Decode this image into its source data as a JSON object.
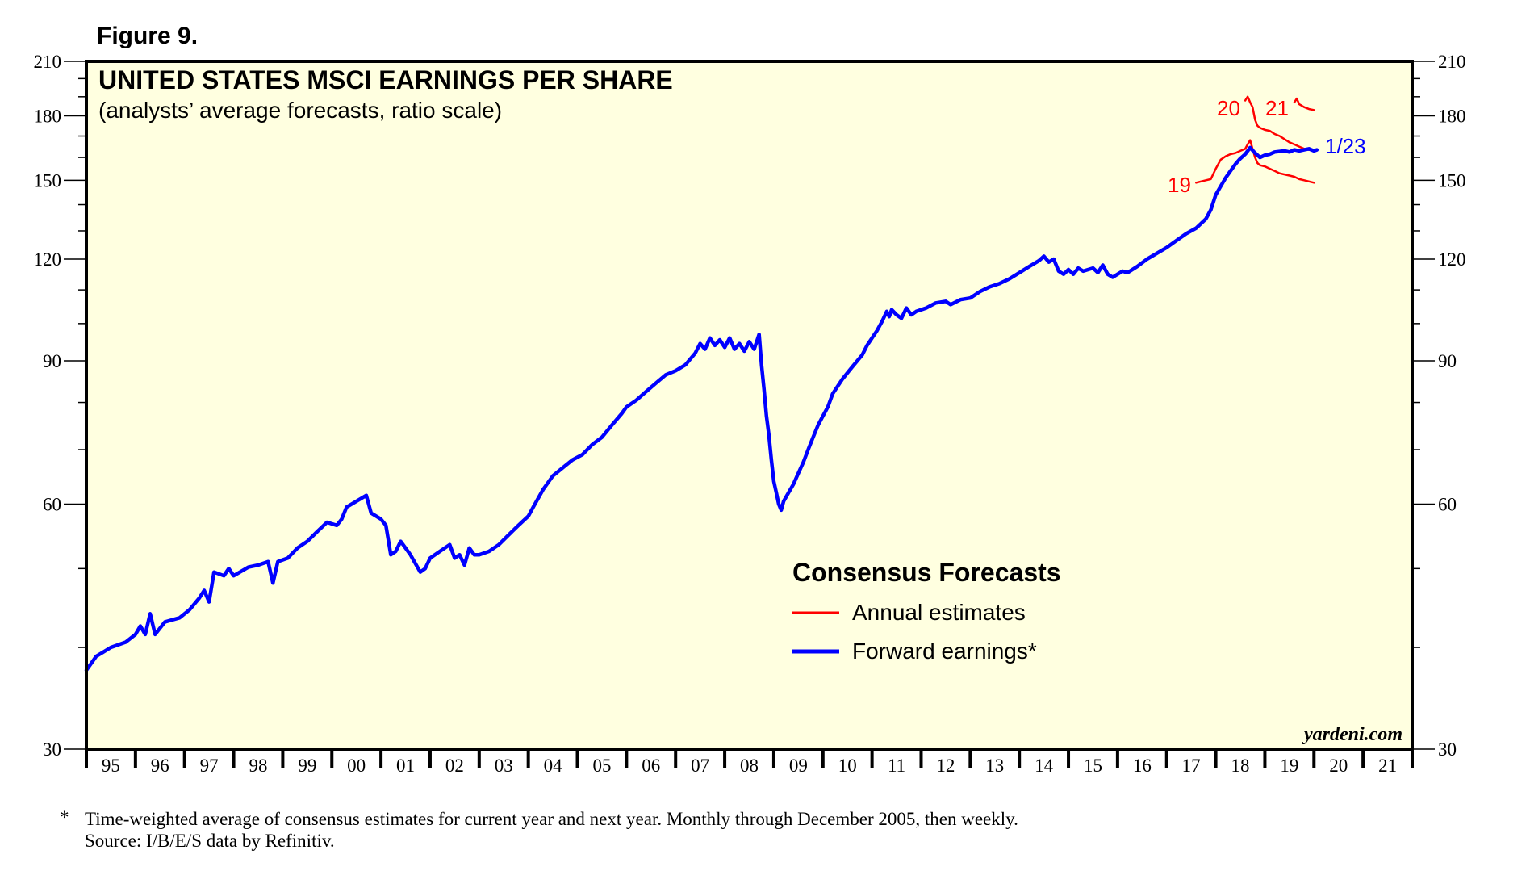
{
  "figure_label": "Figure 9.",
  "chart_data": {
    "type": "line",
    "title": "UNITED STATES MSCI EARNINGS PER SHARE",
    "subtitle": "(analysts’ average forecasts, ratio scale)",
    "yscale": "log",
    "ylim": [
      30,
      210
    ],
    "yticks": [
      30,
      60,
      90,
      120,
      150,
      180,
      210
    ],
    "xlim": [
      1995.0,
      2022.0
    ],
    "xtick_labels": [
      "95",
      "96",
      "97",
      "98",
      "99",
      "00",
      "01",
      "02",
      "03",
      "04",
      "05",
      "06",
      "07",
      "08",
      "09",
      "10",
      "11",
      "12",
      "13",
      "14",
      "15",
      "16",
      "17",
      "18",
      "19",
      "20",
      "21"
    ],
    "legend": {
      "title": "Consensus Forecasts",
      "entries": [
        {
          "label": "Annual estimates",
          "color": "#ff0000"
        },
        {
          "label": "Forward earnings*",
          "color": "#0000ff"
        }
      ]
    },
    "annotations": {
      "year_19": "19",
      "year_20": "20",
      "year_21": "21",
      "last_date": "1/23"
    },
    "watermark": "yardeni.com",
    "series": [
      {
        "name": "Forward earnings",
        "color": "#0000ff",
        "points": [
          [
            1995.0,
            37.5
          ],
          [
            1995.2,
            39.0
          ],
          [
            1995.5,
            40.0
          ],
          [
            1995.8,
            40.6
          ],
          [
            1996.0,
            41.5
          ],
          [
            1996.1,
            42.5
          ],
          [
            1996.2,
            41.5
          ],
          [
            1996.3,
            44.0
          ],
          [
            1996.4,
            41.5
          ],
          [
            1996.6,
            43.0
          ],
          [
            1996.9,
            43.5
          ],
          [
            1997.1,
            44.5
          ],
          [
            1997.3,
            46.0
          ],
          [
            1997.4,
            47.0
          ],
          [
            1997.5,
            45.5
          ],
          [
            1997.6,
            49.5
          ],
          [
            1997.8,
            49.0
          ],
          [
            1997.9,
            50.0
          ],
          [
            1998.0,
            49.0
          ],
          [
            1998.3,
            50.2
          ],
          [
            1998.5,
            50.5
          ],
          [
            1998.7,
            51.0
          ],
          [
            1998.8,
            48.0
          ],
          [
            1998.9,
            51.0
          ],
          [
            1999.1,
            51.5
          ],
          [
            1999.3,
            53.0
          ],
          [
            1999.5,
            54.0
          ],
          [
            1999.7,
            55.5
          ],
          [
            1999.9,
            57.0
          ],
          [
            2000.1,
            56.5
          ],
          [
            2000.2,
            57.5
          ],
          [
            2000.3,
            59.5
          ],
          [
            2000.5,
            60.5
          ],
          [
            2000.7,
            61.5
          ],
          [
            2000.8,
            58.5
          ],
          [
            2001.0,
            57.5
          ],
          [
            2001.1,
            56.5
          ],
          [
            2001.2,
            52.0
          ],
          [
            2001.3,
            52.5
          ],
          [
            2001.4,
            54.0
          ],
          [
            2001.5,
            53.0
          ],
          [
            2001.6,
            52.0
          ],
          [
            2001.8,
            49.5
          ],
          [
            2001.9,
            50.0
          ],
          [
            2002.0,
            51.5
          ],
          [
            2002.2,
            52.5
          ],
          [
            2002.4,
            53.5
          ],
          [
            2002.5,
            51.5
          ],
          [
            2002.6,
            52.0
          ],
          [
            2002.7,
            50.5
          ],
          [
            2002.8,
            53.0
          ],
          [
            2002.9,
            52.0
          ],
          [
            2003.0,
            52.0
          ],
          [
            2003.2,
            52.5
          ],
          [
            2003.4,
            53.5
          ],
          [
            2003.6,
            55.0
          ],
          [
            2003.8,
            56.5
          ],
          [
            2004.0,
            58.0
          ],
          [
            2004.1,
            59.5
          ],
          [
            2004.3,
            62.5
          ],
          [
            2004.5,
            65.0
          ],
          [
            2004.7,
            66.5
          ],
          [
            2004.9,
            68.0
          ],
          [
            2005.1,
            69.0
          ],
          [
            2005.3,
            71.0
          ],
          [
            2005.5,
            72.5
          ],
          [
            2005.7,
            75.0
          ],
          [
            2005.9,
            77.5
          ],
          [
            2006.0,
            79.0
          ],
          [
            2006.2,
            80.5
          ],
          [
            2006.4,
            82.5
          ],
          [
            2006.6,
            84.5
          ],
          [
            2006.8,
            86.5
          ],
          [
            2007.0,
            87.5
          ],
          [
            2007.2,
            89.0
          ],
          [
            2007.4,
            92.0
          ],
          [
            2007.5,
            94.5
          ],
          [
            2007.6,
            93.0
          ],
          [
            2007.7,
            96.0
          ],
          [
            2007.8,
            94.0
          ],
          [
            2007.9,
            95.5
          ],
          [
            2008.0,
            93.5
          ],
          [
            2008.1,
            96.0
          ],
          [
            2008.2,
            93.0
          ],
          [
            2008.3,
            94.5
          ],
          [
            2008.4,
            92.5
          ],
          [
            2008.5,
            95.0
          ],
          [
            2008.6,
            93.0
          ],
          [
            2008.7,
            97.0
          ],
          [
            2008.75,
            89.0
          ],
          [
            2008.8,
            83.0
          ],
          [
            2008.85,
            77.0
          ],
          [
            2008.9,
            73.0
          ],
          [
            2008.95,
            68.0
          ],
          [
            2009.0,
            64.0
          ],
          [
            2009.05,
            62.0
          ],
          [
            2009.1,
            60.0
          ],
          [
            2009.15,
            59.0
          ],
          [
            2009.2,
            60.5
          ],
          [
            2009.3,
            62.0
          ],
          [
            2009.4,
            63.5
          ],
          [
            2009.5,
            65.5
          ],
          [
            2009.6,
            67.5
          ],
          [
            2009.7,
            70.0
          ],
          [
            2009.8,
            72.5
          ],
          [
            2009.9,
            75.0
          ],
          [
            2010.0,
            77.0
          ],
          [
            2010.1,
            79.0
          ],
          [
            2010.2,
            82.0
          ],
          [
            2010.4,
            85.5
          ],
          [
            2010.6,
            88.5
          ],
          [
            2010.8,
            91.5
          ],
          [
            2010.9,
            94.0
          ],
          [
            2011.0,
            96.0
          ],
          [
            2011.1,
            98.0
          ],
          [
            2011.2,
            100.5
          ],
          [
            2011.3,
            103.5
          ],
          [
            2011.35,
            102.0
          ],
          [
            2011.4,
            104.0
          ],
          [
            2011.5,
            102.5
          ],
          [
            2011.6,
            101.5
          ],
          [
            2011.7,
            104.5
          ],
          [
            2011.8,
            102.5
          ],
          [
            2011.9,
            103.5
          ],
          [
            2012.1,
            104.5
          ],
          [
            2012.3,
            106.0
          ],
          [
            2012.5,
            106.5
          ],
          [
            2012.6,
            105.5
          ],
          [
            2012.8,
            107.0
          ],
          [
            2013.0,
            107.5
          ],
          [
            2013.2,
            109.5
          ],
          [
            2013.4,
            111.0
          ],
          [
            2013.6,
            112.0
          ],
          [
            2013.8,
            113.5
          ],
          [
            2014.0,
            115.5
          ],
          [
            2014.2,
            117.5
          ],
          [
            2014.4,
            119.5
          ],
          [
            2014.5,
            121.0
          ],
          [
            2014.6,
            119.0
          ],
          [
            2014.7,
            120.0
          ],
          [
            2014.8,
            116.0
          ],
          [
            2014.9,
            115.0
          ],
          [
            2015.0,
            116.5
          ],
          [
            2015.1,
            115.0
          ],
          [
            2015.2,
            117.0
          ],
          [
            2015.3,
            116.0
          ],
          [
            2015.5,
            117.0
          ],
          [
            2015.6,
            115.5
          ],
          [
            2015.7,
            118.0
          ],
          [
            2015.8,
            115.0
          ],
          [
            2015.9,
            114.0
          ],
          [
            2016.0,
            115.0
          ],
          [
            2016.1,
            116.0
          ],
          [
            2016.2,
            115.5
          ],
          [
            2016.4,
            117.5
          ],
          [
            2016.6,
            120.0
          ],
          [
            2016.8,
            122.0
          ],
          [
            2017.0,
            124.0
          ],
          [
            2017.2,
            126.5
          ],
          [
            2017.4,
            129.0
          ],
          [
            2017.6,
            131.0
          ],
          [
            2017.8,
            134.5
          ],
          [
            2017.9,
            138.0
          ],
          [
            2018.0,
            144.0
          ],
          [
            2018.1,
            147.5
          ],
          [
            2018.2,
            151.0
          ],
          [
            2018.3,
            154.0
          ],
          [
            2018.4,
            157.0
          ],
          [
            2018.5,
            159.5
          ],
          [
            2018.6,
            161.5
          ],
          [
            2018.7,
            164.5
          ],
          [
            2018.8,
            162.0
          ],
          [
            2018.9,
            160.0
          ],
          [
            2019.0,
            161.0
          ],
          [
            2019.1,
            161.5
          ],
          [
            2019.2,
            162.5
          ],
          [
            2019.4,
            163.0
          ],
          [
            2019.5,
            162.5
          ],
          [
            2019.6,
            163.5
          ],
          [
            2019.7,
            163.0
          ],
          [
            2019.8,
            163.5
          ],
          [
            2019.9,
            164.0
          ],
          [
            2020.0,
            163.0
          ],
          [
            2020.06,
            163.5
          ]
        ]
      },
      {
        "name": "Annual estimates 2019",
        "color": "#ff0000",
        "points": [
          [
            2017.6,
            149.0
          ],
          [
            2017.7,
            149.5
          ],
          [
            2017.8,
            150.0
          ],
          [
            2017.9,
            150.5
          ],
          [
            2018.0,
            155.0
          ],
          [
            2018.1,
            159.0
          ],
          [
            2018.2,
            160.5
          ],
          [
            2018.3,
            161.5
          ],
          [
            2018.4,
            162.0
          ],
          [
            2018.5,
            163.0
          ],
          [
            2018.6,
            164.0
          ],
          [
            2018.65,
            166.0
          ],
          [
            2018.7,
            168.0
          ],
          [
            2018.75,
            164.0
          ],
          [
            2018.8,
            160.0
          ],
          [
            2018.85,
            157.5
          ],
          [
            2018.9,
            156.5
          ],
          [
            2019.0,
            156.0
          ],
          [
            2019.1,
            155.0
          ],
          [
            2019.2,
            154.0
          ],
          [
            2019.3,
            153.0
          ],
          [
            2019.4,
            152.5
          ],
          [
            2019.5,
            152.0
          ],
          [
            2019.6,
            151.5
          ],
          [
            2019.7,
            150.5
          ],
          [
            2019.8,
            150.0
          ],
          [
            2019.9,
            149.5
          ],
          [
            2020.0,
            149.0
          ]
        ]
      },
      {
        "name": "Annual estimates 2020",
        "color": "#ff0000",
        "points": [
          [
            2018.6,
            188.0
          ],
          [
            2018.65,
            190.0
          ],
          [
            2018.7,
            187.0
          ],
          [
            2018.75,
            184.5
          ],
          [
            2018.8,
            178.0
          ],
          [
            2018.85,
            175.0
          ],
          [
            2018.9,
            174.0
          ],
          [
            2019.0,
            173.0
          ],
          [
            2019.1,
            172.5
          ],
          [
            2019.2,
            171.0
          ],
          [
            2019.3,
            170.0
          ],
          [
            2019.4,
            168.5
          ],
          [
            2019.5,
            167.0
          ],
          [
            2019.6,
            166.0
          ],
          [
            2019.7,
            165.0
          ],
          [
            2019.8,
            164.0
          ],
          [
            2019.9,
            163.5
          ],
          [
            2020.0,
            163.0
          ]
        ]
      },
      {
        "name": "Annual estimates 2021",
        "color": "#ff0000",
        "points": [
          [
            2019.6,
            187.0
          ],
          [
            2019.65,
            189.0
          ],
          [
            2019.7,
            186.0
          ],
          [
            2019.8,
            184.5
          ],
          [
            2019.9,
            183.5
          ],
          [
            2020.0,
            183.0
          ]
        ]
      }
    ]
  },
  "footnote": {
    "marker": "*",
    "line1": "Time-weighted average of consensus estimates for current year and next year. Monthly through December 2005, then weekly.",
    "line2": "Source: I/B/E/S data by Refinitiv."
  }
}
